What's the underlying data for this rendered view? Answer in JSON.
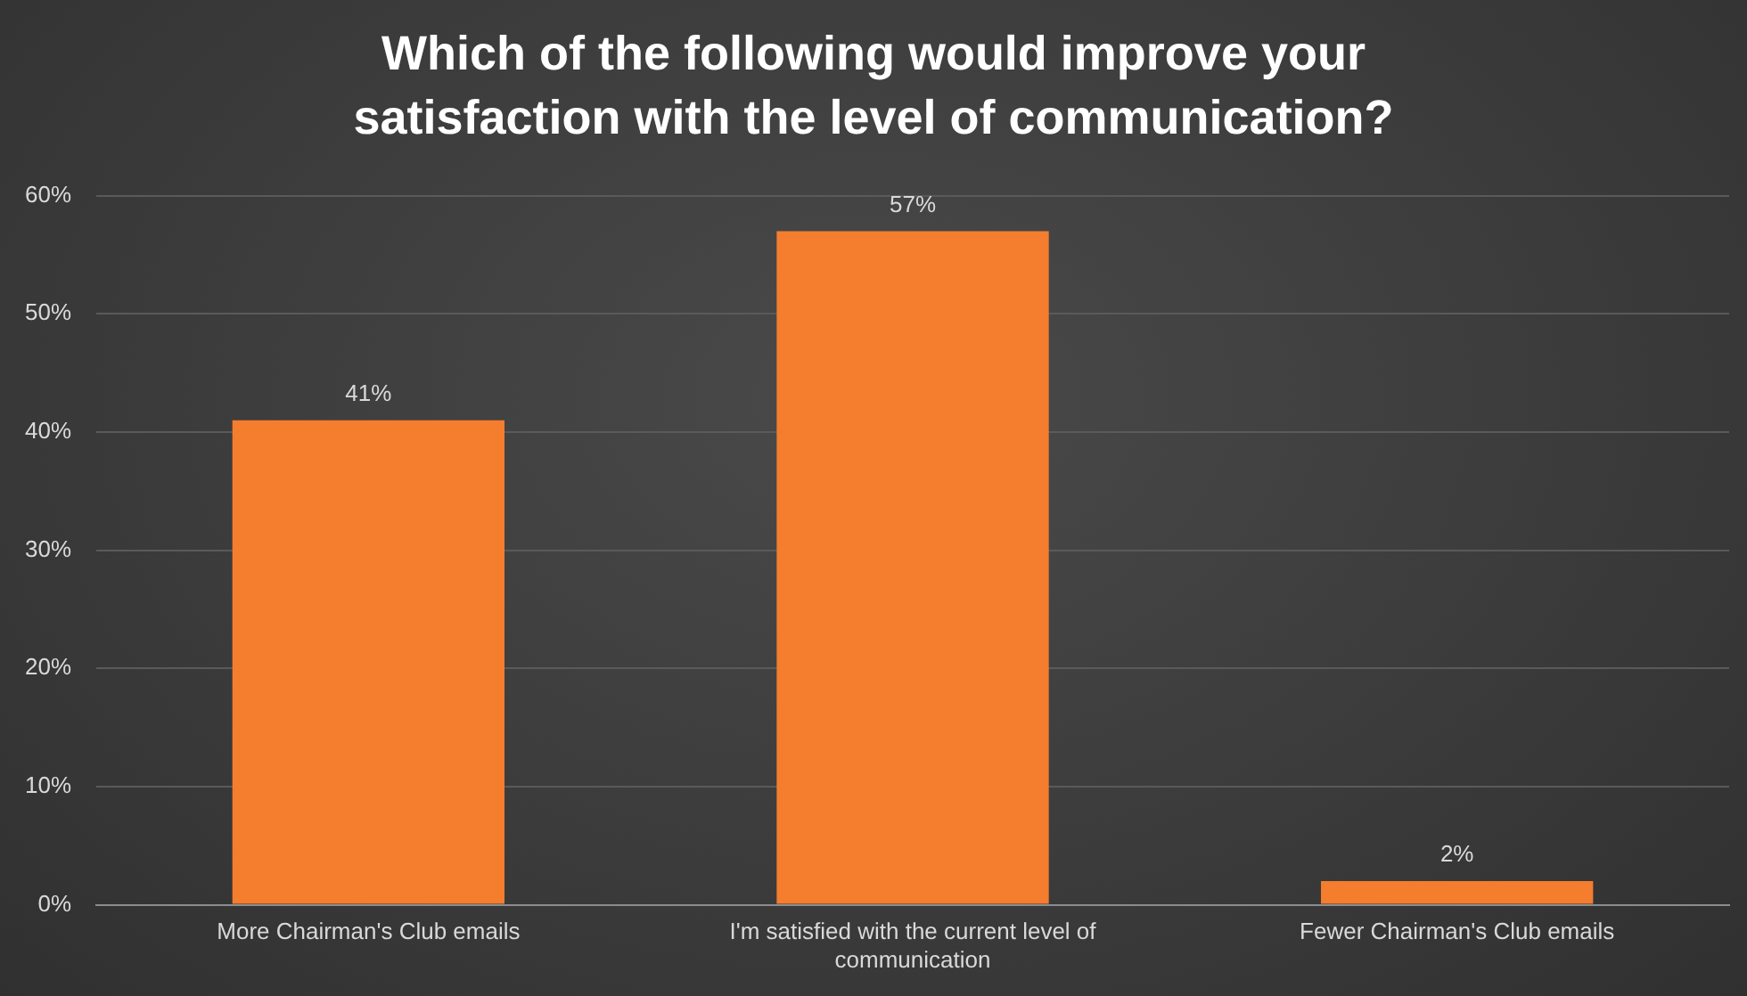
{
  "chart_data": {
    "type": "bar",
    "title": "Which of the following would improve your satisfaction with the level of communication?",
    "categories": [
      "More Chairman's Club emails",
      "I'm satisfied with the current level of communication",
      "Fewer Chairman's Club emails"
    ],
    "values": [
      41,
      57,
      2
    ],
    "color": "#f47d2e",
    "value_labels": [
      "41%",
      "57%",
      "2%"
    ],
    "ylim": [
      0,
      60
    ],
    "yticks": [
      {
        "value": 0,
        "label": "0%"
      },
      {
        "value": 10,
        "label": "10%"
      },
      {
        "value": 20,
        "label": "20%"
      },
      {
        "value": 30,
        "label": "30%"
      },
      {
        "value": 40,
        "label": "40%"
      },
      {
        "value": 50,
        "label": "50%"
      },
      {
        "value": 60,
        "label": "60%"
      }
    ],
    "grid": "y",
    "legend": false
  }
}
